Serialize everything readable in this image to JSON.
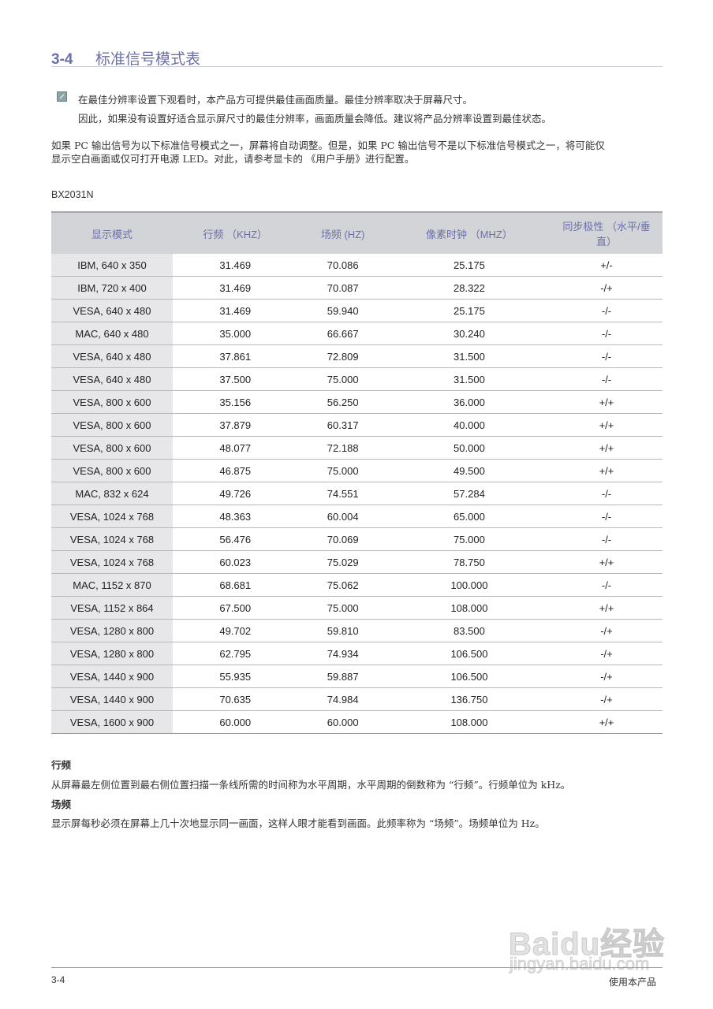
{
  "section": {
    "number": "3-4",
    "title": "标准信号模式表"
  },
  "note": {
    "icon": "note-icon",
    "line1": "在最佳分辨率设置下观看时，本产品方可提供最佳画面质量。最佳分辨率取决于屏幕尺寸。",
    "line2": "因此，如果没有设置好适合显示屏尺寸的最佳分辨率，画面质量会降低。建议将产品分辨率设置到最佳状态。"
  },
  "paragraph": {
    "line1": "如果 PC 输出信号为以下标准信号模式之一，屏幕将自动调整。但是，如果 PC 输出信号不是以下标准信号模式之一，将可能仅",
    "line2": "显示空白画面或仅可打开电源 LED。对此，请参考显卡的 《用户手册》进行配置。"
  },
  "model": "BX2031N",
  "table": {
    "headers": [
      "显示模式",
      "行频 （KHZ）",
      "场频 (HZ)",
      "像素时钟 （MHZ）",
      "同步极性 （水平/垂直）"
    ],
    "rows": [
      [
        "IBM, 640 x 350",
        "31.469",
        "70.086",
        "25.175",
        "+/-"
      ],
      [
        "IBM, 720 x 400",
        "31.469",
        "70.087",
        "28.322",
        "-/+"
      ],
      [
        "VESA, 640 x 480",
        "31.469",
        "59.940",
        "25.175",
        "-/-"
      ],
      [
        "MAC, 640 x 480",
        "35.000",
        "66.667",
        "30.240",
        "-/-"
      ],
      [
        "VESA, 640 x 480",
        "37.861",
        "72.809",
        "31.500",
        "-/-"
      ],
      [
        "VESA, 640 x 480",
        "37.500",
        "75.000",
        "31.500",
        "-/-"
      ],
      [
        "VESA, 800 x 600",
        "35.156",
        "56.250",
        "36.000",
        "+/+"
      ],
      [
        "VESA, 800 x 600",
        "37.879",
        "60.317",
        "40.000",
        "+/+"
      ],
      [
        "VESA, 800 x 600",
        "48.077",
        "72.188",
        "50.000",
        "+/+"
      ],
      [
        "VESA, 800 x 600",
        "46.875",
        "75.000",
        "49.500",
        "+/+"
      ],
      [
        "MAC, 832 x 624",
        "49.726",
        "74.551",
        "57.284",
        "-/-"
      ],
      [
        "VESA, 1024 x 768",
        "48.363",
        "60.004",
        "65.000",
        "-/-"
      ],
      [
        "VESA, 1024 x 768",
        "56.476",
        "70.069",
        "75.000",
        "-/-"
      ],
      [
        "VESA, 1024 x 768",
        "60.023",
        "75.029",
        "78.750",
        "+/+"
      ],
      [
        "MAC, 1152 x 870",
        "68.681",
        "75.062",
        "100.000",
        "-/-"
      ],
      [
        "VESA, 1152 x 864",
        "67.500",
        "75.000",
        "108.000",
        "+/+"
      ],
      [
        "VESA, 1280 x 800",
        "49.702",
        "59.810",
        "83.500",
        "-/+"
      ],
      [
        "VESA, 1280 x 800",
        "62.795",
        "74.934",
        "106.500",
        "-/+"
      ],
      [
        "VESA, 1440 x 900",
        "55.935",
        "59.887",
        "106.500",
        "-/+"
      ],
      [
        "VESA, 1440 x 900",
        "70.635",
        "74.984",
        "136.750",
        "-/+"
      ],
      [
        "VESA, 1600 x 900",
        "60.000",
        "60.000",
        "108.000",
        "+/+"
      ]
    ]
  },
  "definitions": {
    "h_title": "行频",
    "h_text": "从屏幕最左侧位置到最右侧位置扫描一条线所需的时间称为水平周期，水平周期的倒数称为 “行频”。行频单位为 kHz。",
    "v_title": "场频",
    "v_text": "显示屏每秒必须在屏幕上几十次地显示同一画面，这样人眼才能看到画面。此频率称为 “场频”。场频单位为 Hz。"
  },
  "footer": {
    "page": "3-4",
    "chapter": "使用本产品"
  },
  "watermark": {
    "logo": "Baidu经验",
    "url": "jingyan.baidu.com"
  },
  "colors": {
    "accent": "#6b6fa8",
    "header_bg": "#d3d4d8",
    "first_col_bg": "#e7e7ea"
  }
}
